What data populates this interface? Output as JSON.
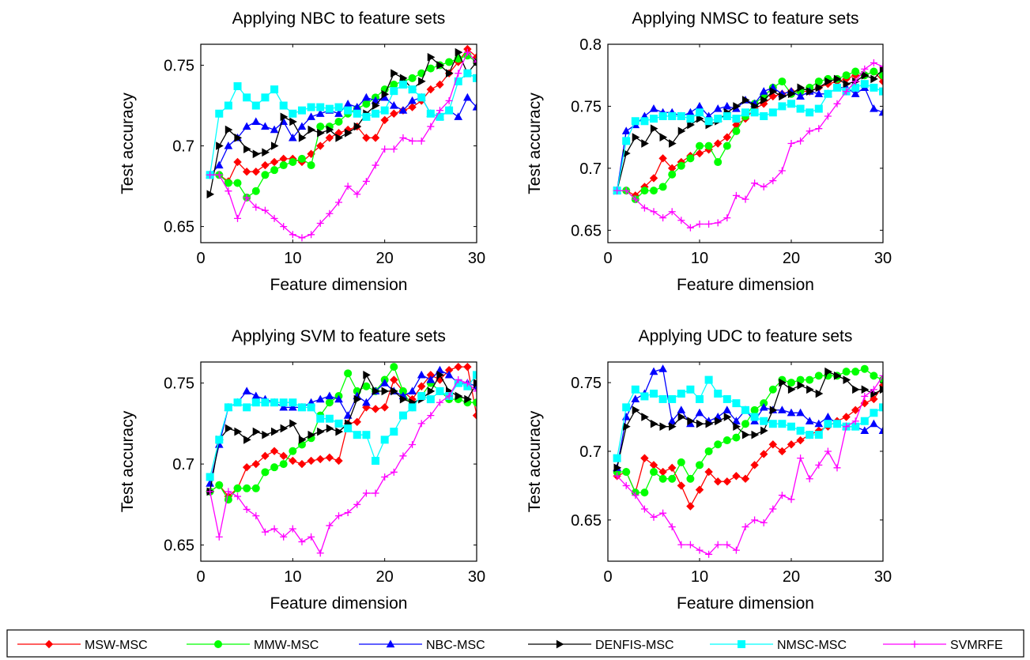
{
  "chart_data": [
    {
      "type": "line",
      "title": "Applying NBC to feature sets",
      "xlabel": "Feature dimension",
      "ylabel": "Test accuracy",
      "xlim": [
        0,
        30
      ],
      "ylim": [
        0.64,
        0.763
      ],
      "xticks": [
        0,
        10,
        20,
        30
      ],
      "yticks": [
        0.65,
        0.7,
        0.75
      ],
      "ytick_labels": [
        "0.65",
        "0.7",
        "0.75"
      ],
      "x": [
        1,
        2,
        3,
        4,
        5,
        6,
        7,
        8,
        9,
        10,
        11,
        12,
        13,
        14,
        15,
        16,
        17,
        18,
        19,
        20,
        21,
        22,
        23,
        24,
        25,
        26,
        27,
        28,
        29,
        30
      ],
      "series": [
        {
          "name": "MSW-MSC",
          "values": [
            0.682,
            0.682,
            0.678,
            0.69,
            0.684,
            0.684,
            0.688,
            0.69,
            0.692,
            0.692,
            0.69,
            0.695,
            0.7,
            0.705,
            0.708,
            0.71,
            0.712,
            0.705,
            0.705,
            0.716,
            0.72,
            0.722,
            0.724,
            0.728,
            0.735,
            0.738,
            0.745,
            0.752,
            0.76,
            0.755
          ]
        },
        {
          "name": "MMW-MSC",
          "values": [
            0.682,
            0.682,
            0.677,
            0.677,
            0.668,
            0.672,
            0.682,
            0.685,
            0.688,
            0.69,
            0.692,
            0.688,
            0.712,
            0.712,
            0.715,
            0.72,
            0.723,
            0.726,
            0.73,
            0.735,
            0.738,
            0.74,
            0.742,
            0.745,
            0.748,
            0.75,
            0.752,
            0.754,
            0.756,
            0.752
          ]
        },
        {
          "name": "NBC-MSC",
          "values": [
            0.682,
            0.688,
            0.7,
            0.705,
            0.712,
            0.715,
            0.712,
            0.71,
            0.715,
            0.705,
            0.712,
            0.718,
            0.72,
            0.722,
            0.72,
            0.726,
            0.724,
            0.73,
            0.728,
            0.73,
            0.725,
            0.722,
            0.728,
            0.73,
            0.72,
            0.718,
            0.722,
            0.718,
            0.73,
            0.724
          ]
        },
        {
          "name": "DENFIS-MSC",
          "values": [
            0.67,
            0.7,
            0.71,
            0.705,
            0.698,
            0.695,
            0.696,
            0.7,
            0.718,
            0.715,
            0.705,
            0.71,
            0.708,
            0.71,
            0.705,
            0.708,
            0.712,
            0.72,
            0.725,
            0.732,
            0.745,
            0.742,
            0.735,
            0.74,
            0.755,
            0.75,
            0.745,
            0.758,
            0.745,
            0.752
          ]
        },
        {
          "name": "NMSC-MSC",
          "values": [
            0.682,
            0.72,
            0.725,
            0.737,
            0.73,
            0.725,
            0.73,
            0.735,
            0.725,
            0.72,
            0.722,
            0.724,
            0.724,
            0.723,
            0.724,
            0.722,
            0.72,
            0.718,
            0.72,
            0.722,
            0.734,
            0.738,
            0.735,
            0.73,
            0.72,
            0.718,
            0.722,
            0.74,
            0.745,
            0.742
          ]
        },
        {
          "name": "SVMRFE",
          "values": [
            0.682,
            0.682,
            0.672,
            0.655,
            0.668,
            0.662,
            0.66,
            0.655,
            0.65,
            0.645,
            0.643,
            0.645,
            0.652,
            0.658,
            0.665,
            0.675,
            0.67,
            0.678,
            0.688,
            0.698,
            0.698,
            0.705,
            0.703,
            0.703,
            0.712,
            0.722,
            0.728,
            0.745,
            0.758,
            0.752
          ]
        }
      ]
    },
    {
      "type": "line",
      "title": "Applying NMSC to feature sets",
      "xlabel": "Feature dimension",
      "ylabel": "Test accuracy",
      "xlim": [
        0,
        30
      ],
      "ylim": [
        0.64,
        0.8
      ],
      "xticks": [
        0,
        10,
        20,
        30
      ],
      "yticks": [
        0.65,
        0.7,
        0.75,
        0.8
      ],
      "ytick_labels": [
        "0.65",
        "0.7",
        "0.75",
        "0.8"
      ],
      "x": [
        1,
        2,
        3,
        4,
        5,
        6,
        7,
        8,
        9,
        10,
        11,
        12,
        13,
        14,
        15,
        16,
        17,
        18,
        19,
        20,
        21,
        22,
        23,
        24,
        25,
        26,
        27,
        28,
        29,
        30
      ],
      "series": [
        {
          "name": "MSW-MSC",
          "values": [
            0.682,
            0.682,
            0.678,
            0.685,
            0.692,
            0.708,
            0.7,
            0.705,
            0.71,
            0.712,
            0.715,
            0.72,
            0.725,
            0.735,
            0.74,
            0.748,
            0.752,
            0.758,
            0.76,
            0.762,
            0.762,
            0.762,
            0.765,
            0.768,
            0.77,
            0.772,
            0.775,
            0.775,
            0.778,
            0.77
          ]
        },
        {
          "name": "MMW-MSC",
          "values": [
            0.682,
            0.682,
            0.675,
            0.682,
            0.682,
            0.685,
            0.695,
            0.702,
            0.708,
            0.718,
            0.718,
            0.705,
            0.718,
            0.73,
            0.742,
            0.752,
            0.758,
            0.765,
            0.77,
            0.76,
            0.762,
            0.765,
            0.77,
            0.772,
            0.772,
            0.775,
            0.778,
            0.775,
            0.778,
            0.775
          ]
        },
        {
          "name": "NBC-MSC",
          "values": [
            0.682,
            0.73,
            0.735,
            0.742,
            0.748,
            0.745,
            0.745,
            0.742,
            0.745,
            0.75,
            0.742,
            0.748,
            0.75,
            0.748,
            0.755,
            0.752,
            0.762,
            0.765,
            0.76,
            0.762,
            0.758,
            0.762,
            0.76,
            0.76,
            0.765,
            0.765,
            0.76,
            0.765,
            0.748,
            0.745
          ]
        },
        {
          "name": "DENFIS-MSC",
          "values": [
            0.682,
            0.712,
            0.725,
            0.72,
            0.732,
            0.725,
            0.72,
            0.73,
            0.735,
            0.74,
            0.735,
            0.738,
            0.745,
            0.75,
            0.755,
            0.75,
            0.755,
            0.762,
            0.758,
            0.76,
            0.765,
            0.762,
            0.765,
            0.77,
            0.772,
            0.768,
            0.77,
            0.775,
            0.772,
            0.78
          ]
        },
        {
          "name": "NMSC-MSC",
          "values": [
            0.682,
            0.722,
            0.738,
            0.738,
            0.74,
            0.742,
            0.742,
            0.742,
            0.74,
            0.745,
            0.738,
            0.74,
            0.742,
            0.74,
            0.745,
            0.745,
            0.742,
            0.745,
            0.75,
            0.752,
            0.748,
            0.745,
            0.748,
            0.76,
            0.765,
            0.762,
            0.765,
            0.768,
            0.765,
            0.762
          ]
        },
        {
          "name": "SVMRFE",
          "values": [
            0.682,
            0.682,
            0.675,
            0.668,
            0.665,
            0.66,
            0.665,
            0.658,
            0.652,
            0.655,
            0.655,
            0.656,
            0.66,
            0.678,
            0.675,
            0.688,
            0.685,
            0.69,
            0.698,
            0.72,
            0.722,
            0.73,
            0.732,
            0.742,
            0.752,
            0.762,
            0.77,
            0.78,
            0.785,
            0.782
          ]
        }
      ]
    },
    {
      "type": "line",
      "title": "Applying SVM to feature sets",
      "xlabel": "Feature dimension",
      "ylabel": "Test accuracy",
      "xlim": [
        0,
        30
      ],
      "ylim": [
        0.64,
        0.763
      ],
      "xticks": [
        0,
        10,
        20,
        30
      ],
      "yticks": [
        0.65,
        0.7,
        0.75
      ],
      "ytick_labels": [
        "0.65",
        "0.7",
        "0.75"
      ],
      "x": [
        1,
        2,
        3,
        4,
        5,
        6,
        7,
        8,
        9,
        10,
        11,
        12,
        13,
        14,
        15,
        16,
        17,
        18,
        19,
        20,
        21,
        22,
        23,
        24,
        25,
        26,
        27,
        28,
        29,
        30
      ],
      "series": [
        {
          "name": "MSW-MSC",
          "values": [
            0.683,
            0.687,
            0.68,
            0.685,
            0.698,
            0.7,
            0.705,
            0.708,
            0.705,
            0.702,
            0.7,
            0.702,
            0.703,
            0.704,
            0.702,
            0.725,
            0.726,
            0.735,
            0.734,
            0.735,
            0.752,
            0.745,
            0.74,
            0.748,
            0.755,
            0.752,
            0.758,
            0.76,
            0.76,
            0.73
          ]
        },
        {
          "name": "MMW-MSC",
          "values": [
            0.683,
            0.687,
            0.678,
            0.685,
            0.685,
            0.685,
            0.695,
            0.698,
            0.7,
            0.708,
            0.712,
            0.716,
            0.73,
            0.738,
            0.742,
            0.756,
            0.745,
            0.748,
            0.745,
            0.752,
            0.76,
            0.745,
            0.735,
            0.742,
            0.75,
            0.745,
            0.74,
            0.74,
            0.738,
            0.738
          ]
        },
        {
          "name": "NBC-MSC",
          "values": [
            0.688,
            0.712,
            0.735,
            0.738,
            0.745,
            0.742,
            0.74,
            0.738,
            0.735,
            0.735,
            0.735,
            0.738,
            0.74,
            0.742,
            0.74,
            0.73,
            0.742,
            0.738,
            0.745,
            0.75,
            0.745,
            0.742,
            0.745,
            0.755,
            0.752,
            0.758,
            0.755,
            0.75,
            0.75,
            0.748
          ]
        },
        {
          "name": "DENFIS-MSC",
          "values": [
            0.683,
            0.715,
            0.722,
            0.72,
            0.715,
            0.72,
            0.718,
            0.72,
            0.722,
            0.725,
            0.715,
            0.718,
            0.72,
            0.722,
            0.72,
            0.725,
            0.74,
            0.755,
            0.745,
            0.745,
            0.745,
            0.74,
            0.738,
            0.74,
            0.745,
            0.755,
            0.745,
            0.742,
            0.74,
            0.75
          ]
        },
        {
          "name": "NMSC-MSC",
          "values": [
            0.692,
            0.715,
            0.735,
            0.738,
            0.735,
            0.738,
            0.738,
            0.738,
            0.738,
            0.738,
            0.735,
            0.735,
            0.728,
            0.728,
            0.725,
            0.722,
            0.718,
            0.718,
            0.702,
            0.715,
            0.72,
            0.73,
            0.735,
            0.742,
            0.74,
            0.745,
            0.742,
            0.75,
            0.748,
            0.755
          ]
        },
        {
          "name": "SVMRFE",
          "values": [
            0.683,
            0.655,
            0.683,
            0.68,
            0.672,
            0.668,
            0.658,
            0.66,
            0.655,
            0.66,
            0.652,
            0.655,
            0.645,
            0.662,
            0.668,
            0.67,
            0.675,
            0.682,
            0.682,
            0.692,
            0.695,
            0.705,
            0.712,
            0.725,
            0.73,
            0.738,
            0.742,
            0.752,
            0.75,
            0.745
          ]
        }
      ]
    },
    {
      "type": "line",
      "title": "Applying UDC to feature sets",
      "xlabel": "Feature dimension",
      "ylabel": "Test accuracy",
      "xlim": [
        0,
        30
      ],
      "ylim": [
        0.62,
        0.765
      ],
      "xticks": [
        0,
        10,
        20,
        30
      ],
      "yticks": [
        0.65,
        0.7,
        0.75
      ],
      "ytick_labels": [
        "0.65",
        "0.7",
        "0.75"
      ],
      "x": [
        1,
        2,
        3,
        4,
        5,
        6,
        7,
        8,
        9,
        10,
        11,
        12,
        13,
        14,
        15,
        16,
        17,
        18,
        19,
        20,
        21,
        22,
        23,
        24,
        25,
        26,
        27,
        28,
        29,
        30
      ],
      "series": [
        {
          "name": "MSW-MSC",
          "values": [
            0.682,
            0.685,
            0.67,
            0.695,
            0.69,
            0.685,
            0.688,
            0.675,
            0.66,
            0.672,
            0.685,
            0.678,
            0.678,
            0.682,
            0.68,
            0.69,
            0.698,
            0.705,
            0.7,
            0.705,
            0.708,
            0.712,
            0.715,
            0.718,
            0.722,
            0.725,
            0.73,
            0.735,
            0.738,
            0.748
          ]
        },
        {
          "name": "MMW-MSC",
          "values": [
            0.685,
            0.685,
            0.67,
            0.67,
            0.685,
            0.68,
            0.68,
            0.692,
            0.68,
            0.69,
            0.7,
            0.705,
            0.708,
            0.71,
            0.72,
            0.73,
            0.735,
            0.745,
            0.752,
            0.75,
            0.752,
            0.752,
            0.755,
            0.755,
            0.755,
            0.758,
            0.758,
            0.76,
            0.755,
            0.752
          ]
        },
        {
          "name": "NBC-MSC",
          "values": [
            0.688,
            0.725,
            0.738,
            0.742,
            0.758,
            0.76,
            0.722,
            0.73,
            0.72,
            0.728,
            0.722,
            0.725,
            0.73,
            0.722,
            0.73,
            0.722,
            0.732,
            0.73,
            0.73,
            0.728,
            0.728,
            0.722,
            0.72,
            0.725,
            0.72,
            0.718,
            0.718,
            0.715,
            0.72,
            0.715
          ]
        },
        {
          "name": "DENFIS-MSC",
          "values": [
            0.688,
            0.718,
            0.73,
            0.725,
            0.72,
            0.718,
            0.718,
            0.725,
            0.722,
            0.72,
            0.72,
            0.722,
            0.725,
            0.718,
            0.712,
            0.712,
            0.715,
            0.73,
            0.75,
            0.745,
            0.748,
            0.745,
            0.742,
            0.758,
            0.755,
            0.752,
            0.745,
            0.745,
            0.742,
            0.745
          ]
        },
        {
          "name": "NMSC-MSC",
          "values": [
            0.695,
            0.732,
            0.745,
            0.74,
            0.742,
            0.738,
            0.738,
            0.742,
            0.745,
            0.738,
            0.752,
            0.742,
            0.738,
            0.735,
            0.73,
            0.725,
            0.722,
            0.72,
            0.72,
            0.718,
            0.715,
            0.712,
            0.712,
            0.72,
            0.72,
            0.718,
            0.718,
            0.722,
            0.728,
            0.732
          ]
        },
        {
          "name": "SVMRFE",
          "values": [
            0.682,
            0.675,
            0.668,
            0.658,
            0.652,
            0.655,
            0.645,
            0.632,
            0.632,
            0.628,
            0.625,
            0.632,
            0.632,
            0.628,
            0.645,
            0.65,
            0.648,
            0.658,
            0.668,
            0.665,
            0.695,
            0.68,
            0.69,
            0.7,
            0.688,
            0.718,
            0.722,
            0.74,
            0.745,
            0.755
          ]
        }
      ]
    }
  ],
  "legend": [
    {
      "label": "MSW-MSC",
      "color": "#ff0000",
      "marker": "diamond"
    },
    {
      "label": "MMW-MSC",
      "color": "#00ff00",
      "marker": "circle"
    },
    {
      "label": "NBC-MSC",
      "color": "#0000ff",
      "marker": "triangle-up"
    },
    {
      "label": "DENFIS-MSC",
      "color": "#000000",
      "marker": "triangle-right"
    },
    {
      "label": "NMSC-MSC",
      "color": "#00ffff",
      "marker": "square"
    },
    {
      "label": "SVMRFE",
      "color": "#ff00ff",
      "marker": "plus"
    }
  ],
  "series_colors": {
    "MSW-MSC": "#ff0000",
    "MMW-MSC": "#00ff00",
    "NBC-MSC": "#0000ff",
    "DENFIS-MSC": "#000000",
    "NMSC-MSC": "#00ffff",
    "SVMRFE": "#ff00ff"
  }
}
